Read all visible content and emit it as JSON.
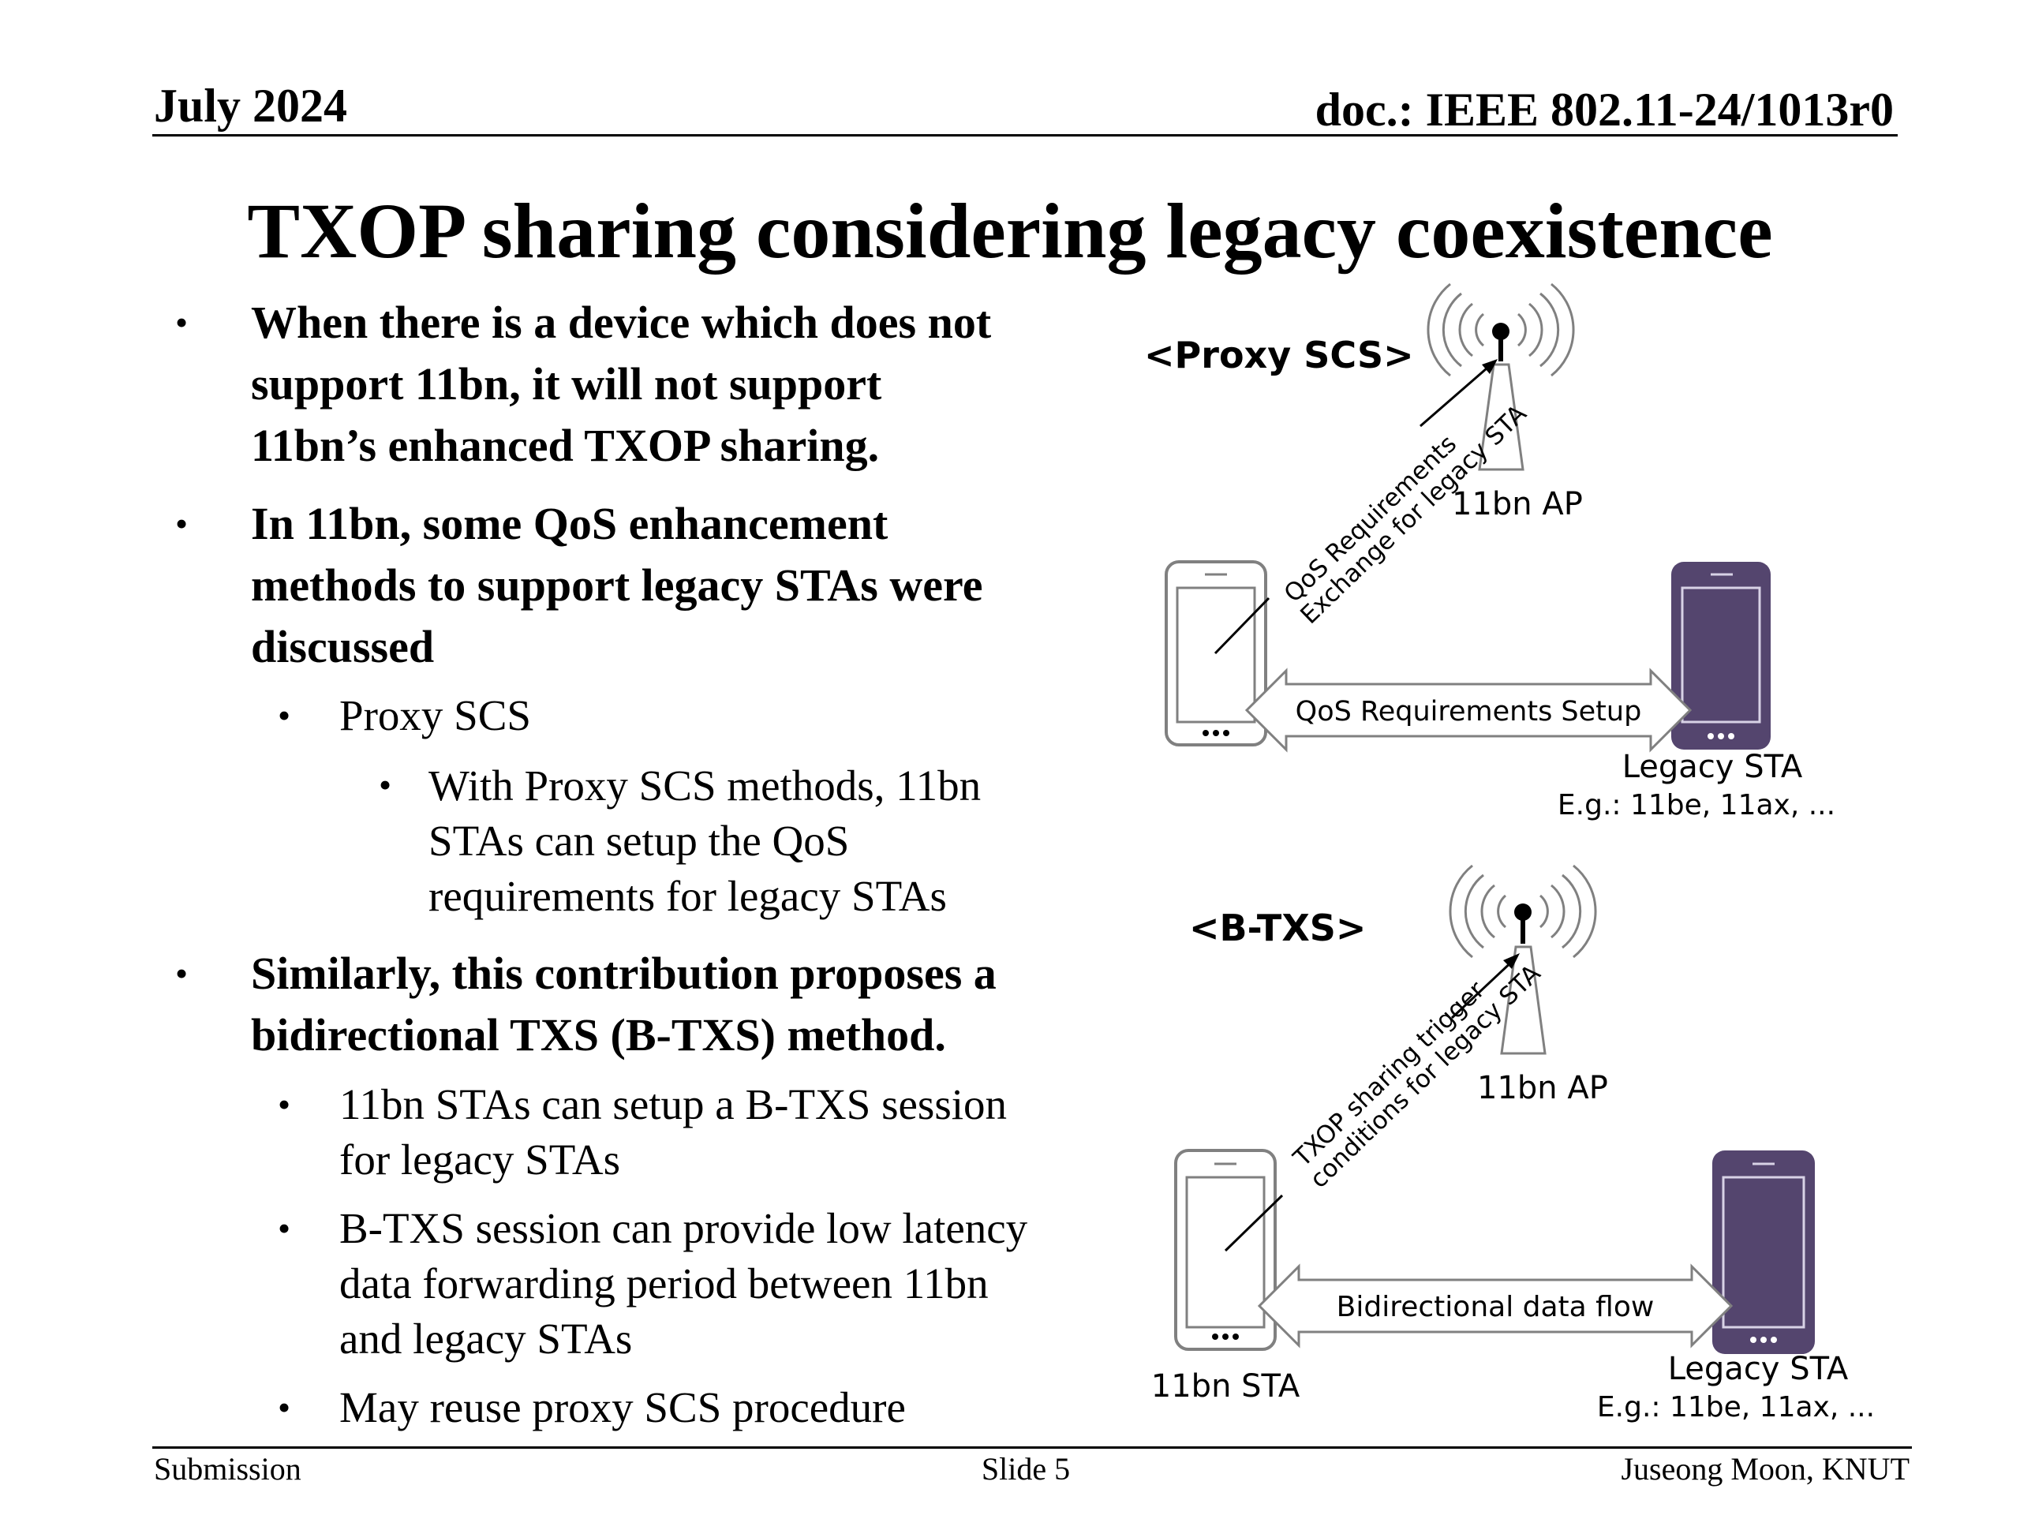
{
  "header": {
    "date": "July 2024",
    "doc": "doc.: IEEE 802.11-24/1013r0"
  },
  "title": "TXOP sharing considering legacy coexistence",
  "body": {
    "bullet1": [
      "When there is a device which does not",
      "support 11bn, it will not support",
      "11bn’s enhanced TXOP sharing."
    ],
    "bullet2": [
      "In 11bn, some QoS enhancement",
      "methods to support legacy STAs were",
      "discussed"
    ],
    "bullet2_sub": "Proxy SCS",
    "bullet2_subsub": [
      "With Proxy SCS methods, 11bn",
      "STAs can setup the QoS",
      "requirements for legacy STAs"
    ],
    "bullet3": [
      "Similarly, this contribution proposes a",
      "bidirectional TXS (B-TXS) method."
    ],
    "bullet3_sub1": [
      "11bn STAs can setup a B-TXS session",
      "for legacy STAs"
    ],
    "bullet3_sub2": [
      "B-TXS session can provide low latency",
      "data forwarding period between 11bn",
      "and legacy STAs"
    ],
    "bullet3_sub3": "May reuse proxy SCS procedure"
  },
  "diagram1": {
    "heading": "<Proxy SCS>",
    "ap_label": "11bn AP",
    "link_label": [
      "QoS Requirements",
      "Exchange for legacy STA"
    ],
    "arrow_label": "QoS Requirements Setup",
    "legacy_label": "Legacy STA",
    "legacy_example": "E.g.: 11be, 11ax, ..."
  },
  "diagram2": {
    "heading": "<B-TXS>",
    "ap_label": "11bn AP",
    "link_label": [
      "TXOP sharing trigger",
      "conditions for legacy STA"
    ],
    "arrow_label": "Bidirectional data flow",
    "sta_label": "11bn STA",
    "legacy_label": "Legacy STA",
    "legacy_example": "E.g.: 11be, 11ax, ..."
  },
  "footer": {
    "left": "Submission",
    "center": "Slide 5",
    "right": "Juseong Moon, KNUT"
  },
  "colors": {
    "legacy_phone": "#54456e",
    "outline": "#808080",
    "text": "#000000"
  }
}
